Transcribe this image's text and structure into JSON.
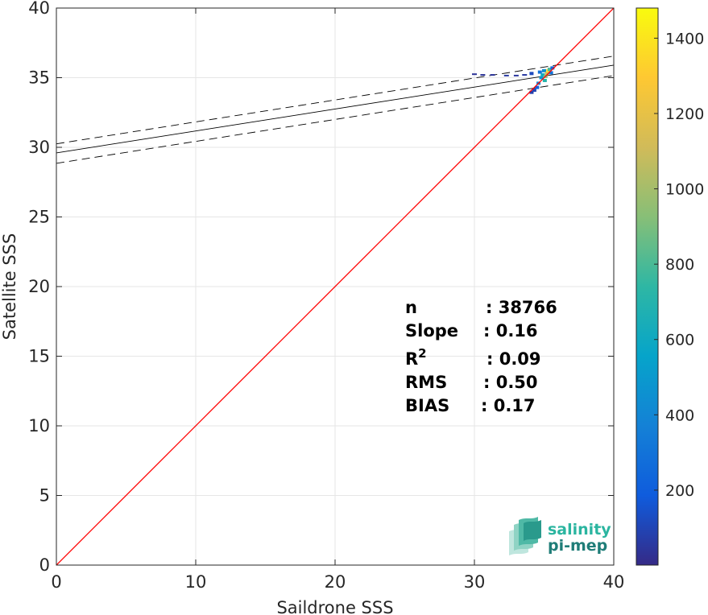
{
  "chart_data": {
    "type": "scatter",
    "subtype": "2d-density-histogram",
    "xlabel": "Saildrone SSS",
    "ylabel": "Satellite SSS",
    "xlim": [
      0,
      40
    ],
    "ylim": [
      0,
      40
    ],
    "xticks": [
      "0",
      "10",
      "20",
      "30",
      "40"
    ],
    "yticks": [
      "0",
      "5",
      "10",
      "15",
      "20",
      "25",
      "30",
      "35",
      "40"
    ],
    "grid": true,
    "stats": [
      {
        "label": "n",
        "value": ": 38766"
      },
      {
        "label": "Slope",
        "value": ": 0.16"
      },
      {
        "label": "R",
        "sup": "2",
        "value": ": 0.09"
      },
      {
        "label": "RMS",
        "value": ": 0.50"
      },
      {
        "label": "BIAS",
        "value": ": 0.17"
      }
    ],
    "identity_line": {
      "x": [
        0,
        40
      ],
      "y": [
        0,
        40
      ],
      "color": "#ff0000"
    },
    "regression_line": {
      "x": [
        0,
        40
      ],
      "y": [
        29.6,
        35.9
      ],
      "color": "#000000"
    },
    "confidence_lines": [
      {
        "x": [
          0,
          40
        ],
        "y": [
          30.25,
          36.55
        ]
      },
      {
        "x": [
          0,
          40
        ],
        "y": [
          28.85,
          35.15
        ]
      }
    ],
    "density_points": [
      {
        "x": 30.0,
        "y": 35.25,
        "count": 40
      },
      {
        "x": 30.6,
        "y": 35.2,
        "count": 40
      },
      {
        "x": 31.3,
        "y": 35.2,
        "count": 40
      },
      {
        "x": 32.3,
        "y": 35.15,
        "count": 60
      },
      {
        "x": 33.0,
        "y": 35.15,
        "count": 50
      },
      {
        "x": 33.6,
        "y": 35.2,
        "count": 60
      },
      {
        "x": 34.1,
        "y": 35.3,
        "count": 120
      },
      {
        "x": 34.3,
        "y": 34.1,
        "count": 100
      },
      {
        "x": 34.1,
        "y": 33.95,
        "count": 80
      },
      {
        "x": 34.5,
        "y": 34.3,
        "count": 200
      },
      {
        "x": 34.6,
        "y": 34.6,
        "count": 400
      },
      {
        "x": 34.7,
        "y": 35.4,
        "count": 300
      },
      {
        "x": 34.8,
        "y": 35.0,
        "count": 500
      },
      {
        "x": 34.9,
        "y": 35.2,
        "count": 600
      },
      {
        "x": 35.0,
        "y": 35.5,
        "count": 450
      },
      {
        "x": 35.05,
        "y": 34.8,
        "count": 700
      },
      {
        "x": 35.1,
        "y": 35.1,
        "count": 900
      },
      {
        "x": 35.2,
        "y": 35.3,
        "count": 1100
      },
      {
        "x": 35.3,
        "y": 35.5,
        "count": 1350
      },
      {
        "x": 35.4,
        "y": 35.6,
        "count": 800
      },
      {
        "x": 35.5,
        "y": 35.35,
        "count": 300
      },
      {
        "x": 35.6,
        "y": 35.7,
        "count": 250
      }
    ],
    "colorbar": {
      "range": [
        1,
        1480
      ],
      "ticks": [
        "200",
        "400",
        "600",
        "800",
        "1000",
        "1200",
        "1400"
      ],
      "colormap": "parula",
      "stops": [
        "#352a87",
        "#0f5cdd",
        "#1481d6",
        "#06a4ca",
        "#2eb7a4",
        "#87bf77",
        "#d1bb59",
        "#fec832",
        "#f9fb0e"
      ]
    }
  },
  "logo": {
    "line1": "salinity",
    "line2": "pi-mep",
    "color1": "#2bb5a0",
    "color2": "#1f7d78"
  }
}
